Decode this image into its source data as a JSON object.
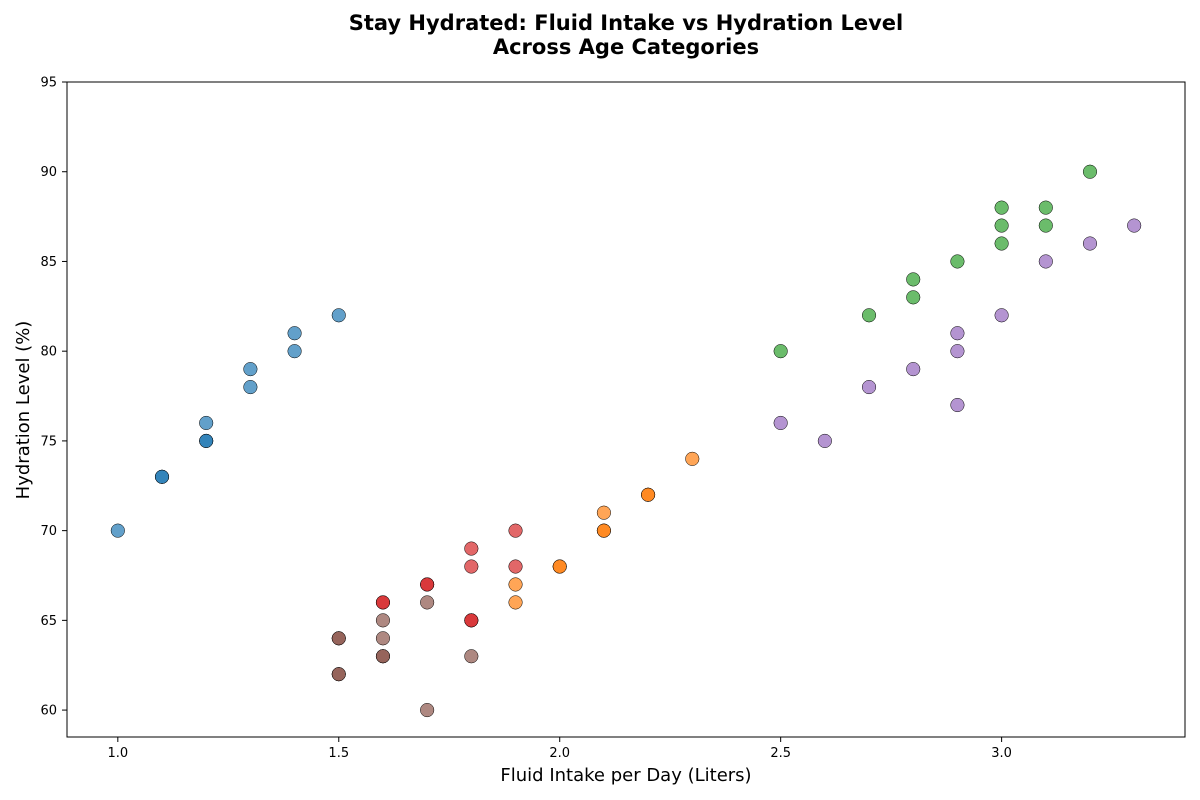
{
  "chart_data": {
    "type": "scatter",
    "title": "Stay Hydrated: Fluid Intake vs Hydration Level\nAcross Age Categories",
    "xlabel": "Fluid Intake per Day (Liters)",
    "ylabel": "Hydration Level (%)",
    "xlim": [
      0.885,
      3.415
    ],
    "ylim": [
      58.5,
      95
    ],
    "xticks": [
      "1.0",
      "1.5",
      "2.0",
      "2.5",
      "3.0"
    ],
    "yticks": [
      "60",
      "65",
      "70",
      "75",
      "80",
      "85",
      "90",
      "95"
    ],
    "grid": false,
    "series": [
      {
        "color": "#1f77b4",
        "points": [
          [
            1.0,
            70
          ],
          [
            1.1,
            73
          ],
          [
            1.1,
            73
          ],
          [
            1.2,
            75
          ],
          [
            1.2,
            75
          ],
          [
            1.2,
            76
          ],
          [
            1.3,
            78
          ],
          [
            1.3,
            79
          ],
          [
            1.4,
            80
          ],
          [
            1.4,
            81
          ],
          [
            1.5,
            82
          ]
        ]
      },
      {
        "color": "#ff7f0e",
        "points": [
          [
            1.9,
            66
          ],
          [
            1.9,
            67
          ],
          [
            2.0,
            68
          ],
          [
            2.0,
            68
          ],
          [
            2.1,
            70
          ],
          [
            2.1,
            70
          ],
          [
            2.1,
            71
          ],
          [
            2.2,
            72
          ],
          [
            2.2,
            72
          ],
          [
            2.3,
            74
          ]
        ]
      },
      {
        "color": "#2ca02c",
        "points": [
          [
            2.5,
            80
          ],
          [
            2.7,
            82
          ],
          [
            2.8,
            83
          ],
          [
            2.8,
            84
          ],
          [
            2.9,
            85
          ],
          [
            3.0,
            86
          ],
          [
            3.0,
            87
          ],
          [
            3.0,
            88
          ],
          [
            3.1,
            87
          ],
          [
            3.1,
            88
          ],
          [
            3.2,
            90
          ]
        ]
      },
      {
        "color": "#d62728",
        "points": [
          [
            1.6,
            66
          ],
          [
            1.6,
            66
          ],
          [
            1.7,
            67
          ],
          [
            1.7,
            67
          ],
          [
            1.8,
            65
          ],
          [
            1.8,
            65
          ],
          [
            1.8,
            68
          ],
          [
            1.8,
            69
          ],
          [
            1.9,
            68
          ],
          [
            1.9,
            70
          ]
        ]
      },
      {
        "color": "#9467bd",
        "points": [
          [
            2.5,
            76
          ],
          [
            2.6,
            75
          ],
          [
            2.7,
            78
          ],
          [
            2.8,
            79
          ],
          [
            2.9,
            77
          ],
          [
            2.9,
            80
          ],
          [
            2.9,
            81
          ],
          [
            3.0,
            82
          ],
          [
            3.1,
            85
          ],
          [
            3.2,
            86
          ],
          [
            3.3,
            87
          ]
        ]
      },
      {
        "color": "#8c564b",
        "points": [
          [
            1.5,
            62
          ],
          [
            1.5,
            62
          ],
          [
            1.5,
            64
          ],
          [
            1.5,
            64
          ],
          [
            1.6,
            63
          ],
          [
            1.6,
            63
          ],
          [
            1.6,
            64
          ],
          [
            1.6,
            65
          ],
          [
            1.7,
            60
          ],
          [
            1.7,
            66
          ],
          [
            1.8,
            63
          ]
        ]
      }
    ]
  }
}
